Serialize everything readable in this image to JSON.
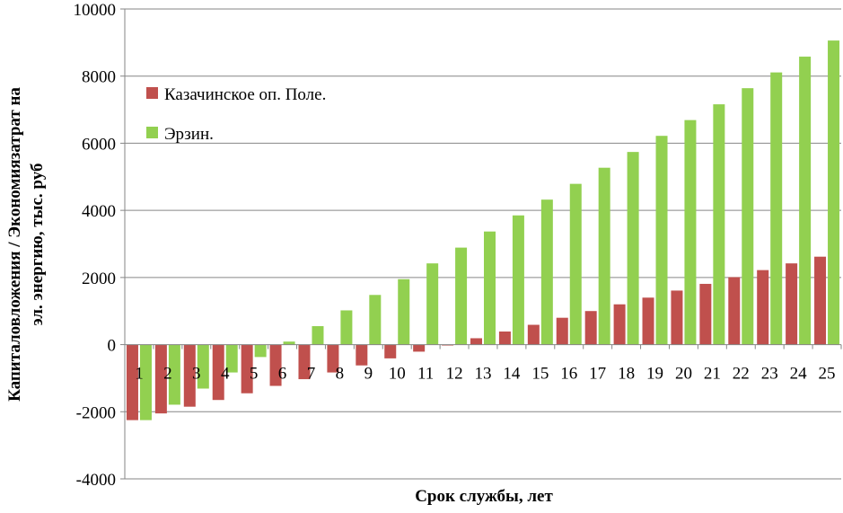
{
  "chart_data": {
    "type": "bar",
    "xlabel": "Срок службы, лет",
    "ylabel_lines": [
      "Капиталовложения / Экономиязатрат на",
      "эл. энергию, тыс. руб"
    ],
    "ylim": [
      -4000,
      10000
    ],
    "yticks": [
      10000,
      8000,
      6000,
      4000,
      2000,
      0,
      -2000,
      -4000
    ],
    "ytick_labels": [
      "10000",
      "8000",
      "6000",
      "4000",
      "2000",
      "0",
      "-2000",
      "-4000"
    ],
    "grid": true,
    "legend_position": "top-left",
    "categories": [
      "1",
      "2",
      "3",
      "4",
      "5",
      "6",
      "7",
      "8",
      "9",
      "10",
      "11",
      "12",
      "13",
      "14",
      "15",
      "16",
      "17",
      "18",
      "19",
      "20",
      "21",
      "22",
      "23",
      "24",
      "25"
    ],
    "series": [
      {
        "name": "Казачинское оп. Поле.",
        "color": "#c0504d",
        "values": [
          -2250,
          -2050,
          -1850,
          -1650,
          -1450,
          -1230,
          -1030,
          -830,
          -620,
          -410,
          -210,
          -20,
          190,
          390,
          590,
          800,
          1000,
          1200,
          1400,
          1610,
          1810,
          2010,
          2220,
          2420,
          2620
        ]
      },
      {
        "name": "Эрзин.",
        "color": "#92d050",
        "values": [
          -2250,
          -1790,
          -1310,
          -830,
          -370,
          90,
          550,
          1020,
          1480,
          1950,
          2420,
          2890,
          3370,
          3850,
          4320,
          4790,
          5270,
          5740,
          6220,
          6690,
          7160,
          7640,
          8110,
          8580,
          9060
        ]
      }
    ]
  }
}
